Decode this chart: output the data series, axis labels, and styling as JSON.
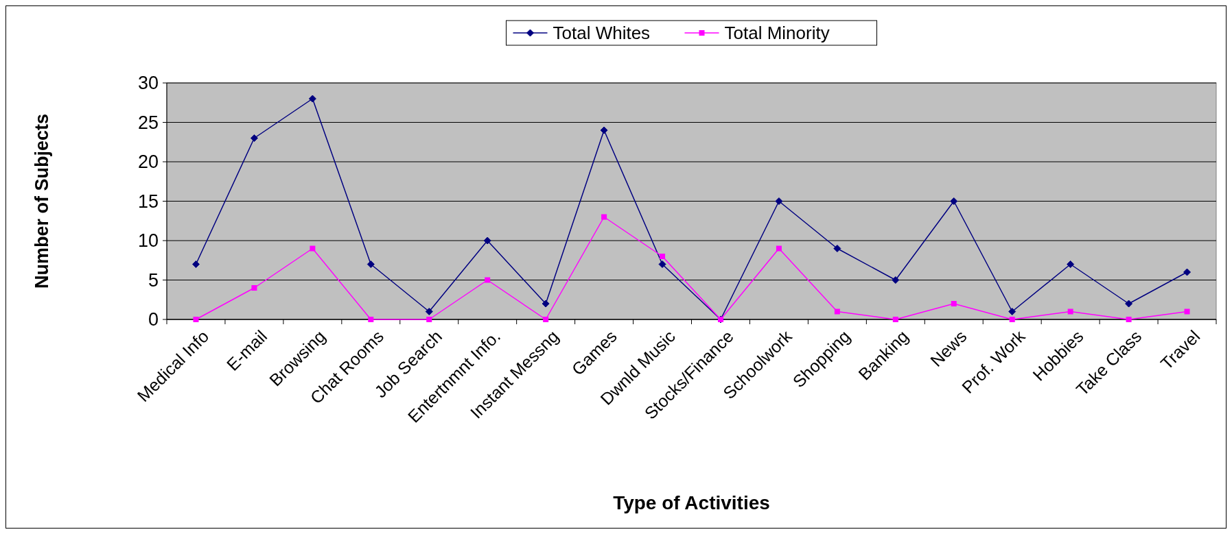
{
  "chart_data": {
    "type": "line",
    "xlabel": "Type of Activities",
    "ylabel": "Number of Subjects",
    "categories": [
      "Medical Info",
      "E-mail",
      "Browsing",
      "Chat Rooms",
      "Job Search",
      "Entertnmnt Info.",
      "Instant Messng",
      "Games",
      "Dwnld Music",
      "Stocks/Finance",
      "Schoolwork",
      "Shopping",
      "Banking",
      "News",
      "Prof. Work",
      "Hobbies",
      "Take Class",
      "Travel"
    ],
    "series": [
      {
        "name": "Total Whites",
        "color": "#000080",
        "marker": "diamond",
        "values": [
          7,
          23,
          28,
          7,
          1,
          10,
          2,
          24,
          7,
          0,
          15,
          9,
          5,
          15,
          1,
          7,
          2,
          6
        ]
      },
      {
        "name": "Total Minority",
        "color": "#ff00ff",
        "marker": "square",
        "values": [
          0,
          4,
          9,
          0,
          0,
          5,
          0,
          13,
          8,
          0,
          9,
          1,
          0,
          2,
          0,
          1,
          0,
          1
        ]
      }
    ],
    "ylim": [
      0,
      30
    ],
    "yticks": [
      0,
      5,
      10,
      15,
      20,
      25,
      30
    ],
    "grid": "y",
    "legend": "top",
    "line_style": "solid"
  }
}
